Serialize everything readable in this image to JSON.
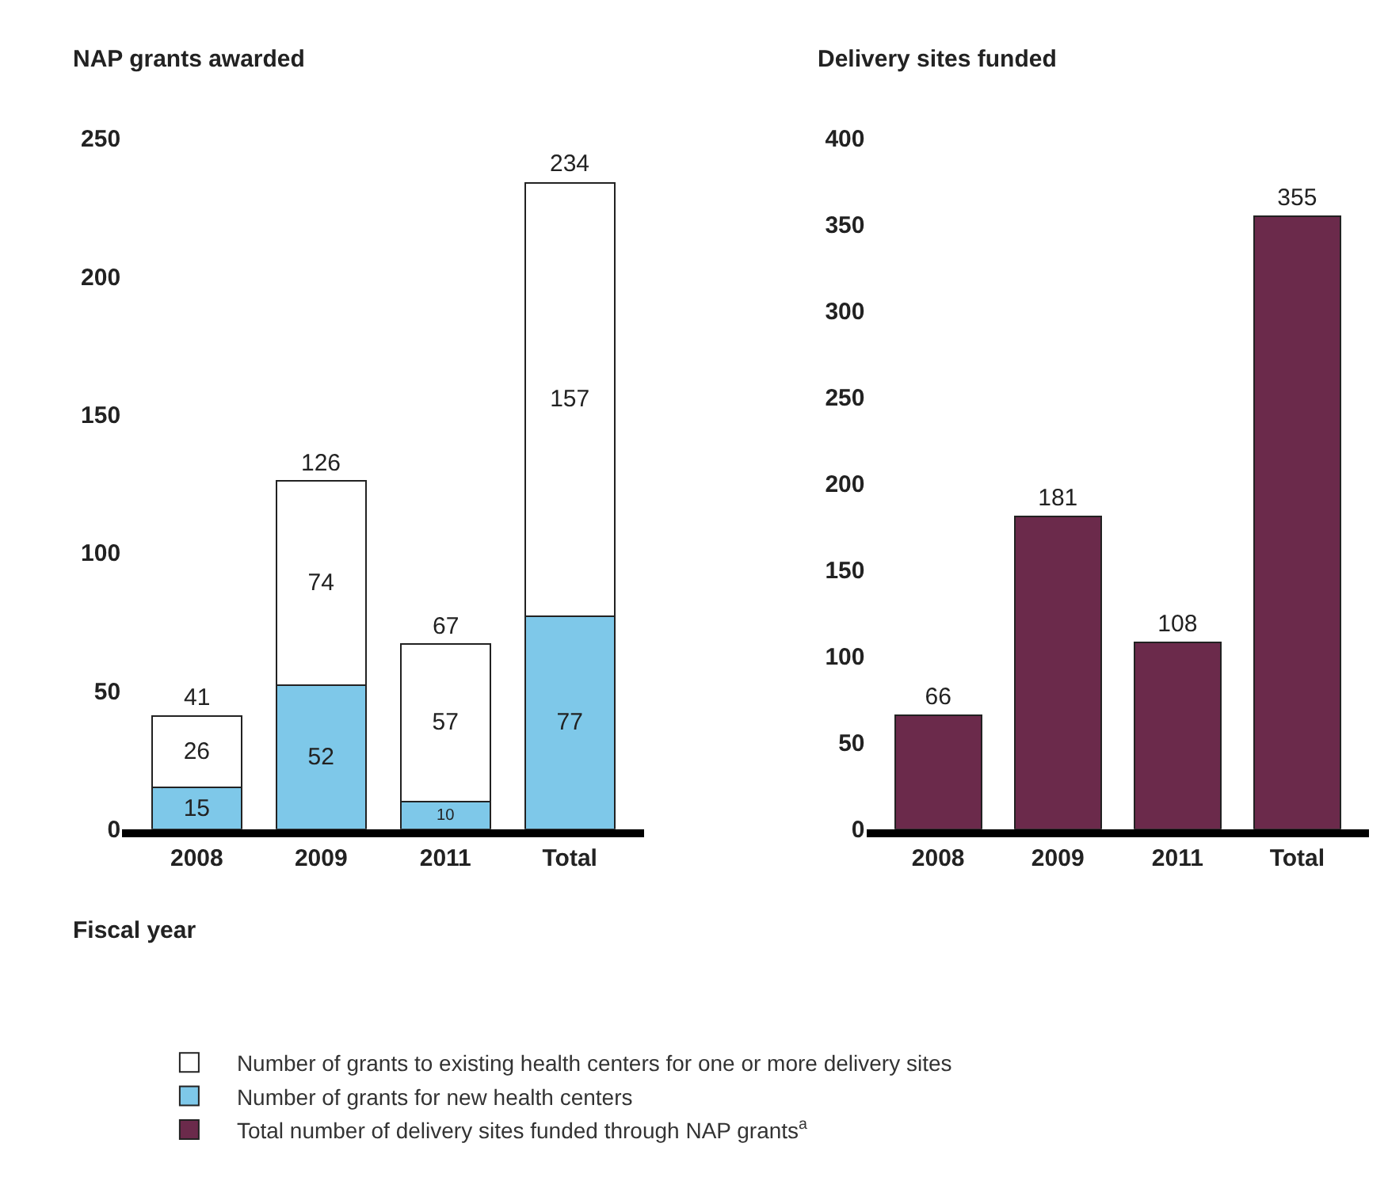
{
  "chart_data": [
    {
      "type": "bar",
      "title": "NAP grants awarded",
      "xlabel": "Fiscal year",
      "categories": [
        "2008",
        "2009",
        "2011",
        "Total"
      ],
      "stacked": true,
      "ylim": [
        0,
        250
      ],
      "yticks": [
        0,
        50,
        100,
        150,
        200,
        250
      ],
      "legend": "bottom",
      "data_labels": true,
      "totals": [
        "41",
        "126",
        "67",
        "234"
      ],
      "series": [
        {
          "name": "Number of grants for new health centers",
          "color": "#7ec8e9",
          "values": [
            15,
            52,
            10,
            77
          ]
        },
        {
          "name": "Number of grants to existing health centers for one or more delivery sites",
          "color": "#ffffff",
          "values": [
            26,
            74,
            57,
            157
          ]
        }
      ]
    },
    {
      "type": "bar",
      "title": "Delivery sites funded",
      "categories": [
        "2008",
        "2009",
        "2011",
        "Total"
      ],
      "ylim": [
        0,
        400
      ],
      "yticks": [
        0,
        50,
        100,
        150,
        200,
        250,
        300,
        350,
        400
      ],
      "legend": "bottom",
      "data_labels": true,
      "series": [
        {
          "name": "Total number of delivery sites funded through NAP grants$^{a}$",
          "color": "#6b2a4b",
          "values": [
            66,
            181,
            108,
            355
          ]
        }
      ]
    }
  ]
}
